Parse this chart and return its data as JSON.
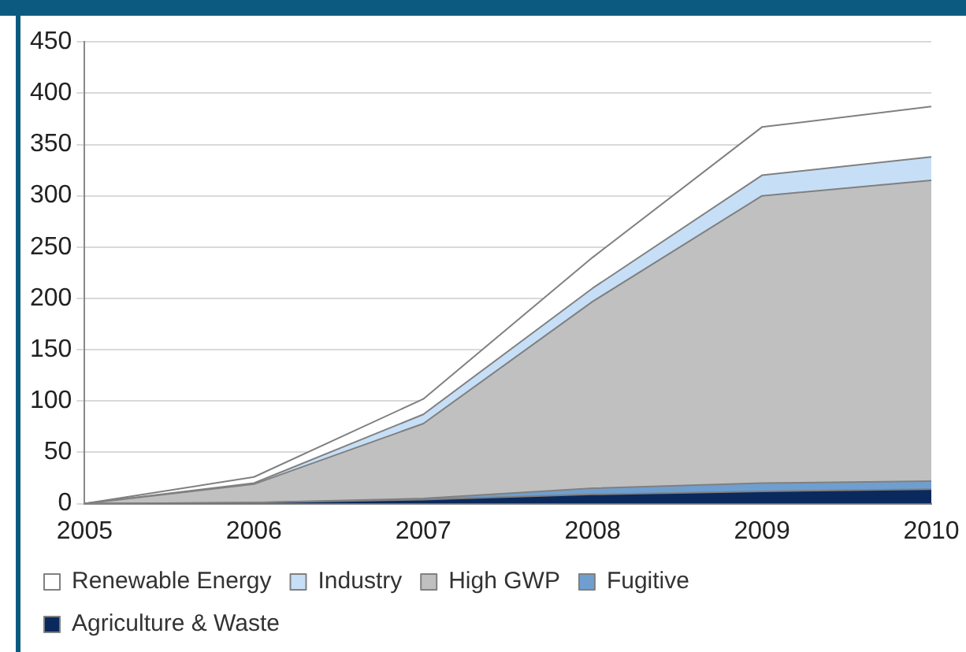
{
  "chart_data": {
    "type": "area",
    "stacked": true,
    "categories": [
      "2005",
      "2006",
      "2007",
      "2008",
      "2009",
      "2010"
    ],
    "series": [
      {
        "name": "Agriculture & Waste",
        "color": "#0a2a5e",
        "values": [
          0,
          1,
          4,
          9,
          12,
          14
        ]
      },
      {
        "name": "Fugitive",
        "color": "#6f9fd0",
        "values": [
          0,
          0,
          1,
          6,
          8,
          8
        ]
      },
      {
        "name": "High GWP",
        "color": "#c0c0c0",
        "values": [
          0,
          18,
          73,
          182,
          280,
          293
        ]
      },
      {
        "name": "Industry",
        "color": "#c6dff7",
        "values": [
          0,
          1,
          9,
          13,
          20,
          23
        ]
      },
      {
        "name": "Renewable Energy",
        "color": "#ffffff",
        "values": [
          0,
          6,
          15,
          30,
          47,
          49
        ]
      }
    ],
    "ylim": [
      0,
      450
    ],
    "yticks": [
      0,
      50,
      100,
      150,
      200,
      250,
      300,
      350,
      400,
      450
    ],
    "grid": "y",
    "legend": "bottom"
  }
}
